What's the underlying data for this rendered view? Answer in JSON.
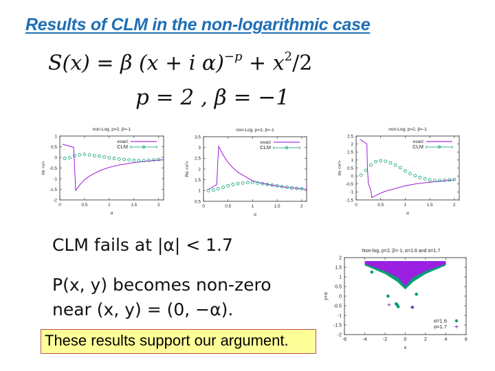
{
  "slide": {
    "title": "Results of CLM in the non-logarithmic case",
    "formula_action": {
      "lhs": "S(x) = β (x + i α)",
      "exponent": "−p",
      "rhs_a": " + x",
      "rhs_sup": "2",
      "rhs_b": "/2"
    },
    "formula_params": "p = 2 ,    β = −1",
    "claim_fail": "CLM fails at |α| < 1.7",
    "claim_p_line1": "P(x, y) becomes non-zero",
    "claim_p_line2": "near (x, y) = (0, −α).",
    "conclusion": "These results support our argument."
  },
  "colors": {
    "title": "#1f6fb5",
    "exact": "#9400d3",
    "clm": "#009e73",
    "box_fill": "#ffff99",
    "box_border": "#c0504d"
  },
  "chart_data": [
    {
      "type": "line",
      "title": "non-Log, p=2, β=-1",
      "xlabel": "α",
      "ylabel": "Im <x>",
      "xlim": [
        0,
        2.1
      ],
      "ylim": [
        -2,
        1
      ],
      "xticks": [
        0,
        0.5,
        1,
        1.5,
        2
      ],
      "yticks": [
        -2,
        -1.5,
        -1,
        -0.5,
        0,
        0.5,
        1
      ],
      "legend": [
        "exact",
        "CLM"
      ],
      "legend_position": "top-right",
      "series": [
        {
          "name": "exact",
          "style": "line",
          "x": [
            0.05,
            0.28,
            0.3,
            0.32,
            0.4,
            0.5,
            0.6,
            0.7,
            0.8,
            0.9,
            1.0,
            1.2,
            1.4,
            1.6,
            1.8,
            2.0,
            2.1
          ],
          "y": [
            0.62,
            0.47,
            -0.5,
            -1.55,
            -1.3,
            -1.05,
            -0.88,
            -0.75,
            -0.64,
            -0.55,
            -0.47,
            -0.36,
            -0.28,
            -0.22,
            -0.17,
            -0.13,
            -0.12
          ]
        },
        {
          "name": "CLM",
          "style": "points",
          "x": [
            0.1,
            0.2,
            0.3,
            0.4,
            0.5,
            0.6,
            0.7,
            0.8,
            0.9,
            1.0,
            1.1,
            1.2,
            1.3,
            1.4,
            1.5,
            1.6,
            1.7,
            1.8,
            1.9,
            2.0
          ],
          "y": [
            -0.05,
            -0.02,
            0.08,
            0.12,
            0.14,
            0.12,
            0.08,
            0.05,
            0.02,
            -0.02,
            -0.05,
            -0.08,
            -0.1,
            -0.12,
            -0.14,
            -0.15,
            -0.15,
            -0.14,
            -0.12,
            -0.1
          ]
        }
      ]
    },
    {
      "type": "line",
      "title": "non-Log, p=2, β=-1",
      "xlabel": "α",
      "ylabel": "Re <x²>",
      "xlim": [
        0,
        2.1
      ],
      "ylim": [
        0.5,
        3.5
      ],
      "xticks": [
        0,
        0.5,
        1,
        1.5,
        2
      ],
      "yticks": [
        0.5,
        1,
        1.5,
        2,
        2.5,
        3,
        3.5
      ],
      "legend": [
        "exact",
        "CLM"
      ],
      "legend_position": "top-right",
      "series": [
        {
          "name": "exact",
          "style": "line",
          "x": [
            0.1,
            0.15,
            0.27,
            0.29,
            0.31,
            0.4,
            0.5,
            0.6,
            0.7,
            0.8,
            0.9,
            1.0,
            1.2,
            1.4,
            1.6,
            1.8,
            2.0,
            2.1
          ],
          "y": [
            1.05,
            1.12,
            1.28,
            2.3,
            3.05,
            2.65,
            2.3,
            2.05,
            1.85,
            1.72,
            1.58,
            1.45,
            1.33,
            1.25,
            1.18,
            1.12,
            1.08,
            1.06
          ]
        },
        {
          "name": "CLM",
          "style": "points",
          "x": [
            0.1,
            0.2,
            0.3,
            0.4,
            0.5,
            0.6,
            0.7,
            0.8,
            0.9,
            1.0,
            1.1,
            1.2,
            1.3,
            1.4,
            1.5,
            1.6,
            1.7,
            1.8,
            1.9,
            2.0
          ],
          "y": [
            1.0,
            1.03,
            1.08,
            1.15,
            1.22,
            1.28,
            1.32,
            1.35,
            1.37,
            1.37,
            1.35,
            1.32,
            1.28,
            1.25,
            1.22,
            1.18,
            1.15,
            1.12,
            1.1,
            1.08
          ]
        }
      ]
    },
    {
      "type": "line",
      "title": "non-Log, p=2, β=-1",
      "xlabel": "α",
      "ylabel": "Im <x²>",
      "xlim": [
        0,
        2.1
      ],
      "ylim": [
        -1.5,
        2.5
      ],
      "xticks": [
        0,
        0.5,
        1,
        1.5,
        2
      ],
      "yticks": [
        -1.5,
        -1,
        -0.5,
        0,
        0.5,
        1,
        1.5,
        2,
        2.5
      ],
      "legend": [
        "exact",
        "CLM"
      ],
      "legend_position": "top-right",
      "series": [
        {
          "name": "exact",
          "style": "line",
          "x": [
            0.08,
            0.22,
            0.23,
            0.25,
            0.27,
            0.3,
            0.32,
            0.4,
            0.5,
            0.6,
            0.8,
            1.0,
            1.2,
            1.4,
            1.6,
            1.8,
            2.0
          ],
          "y": [
            2.3,
            2.0,
            0.5,
            -0.55,
            -0.6,
            -0.9,
            -1.35,
            -1.22,
            -1.08,
            -0.95,
            -0.78,
            -0.62,
            -0.5,
            -0.42,
            -0.36,
            -0.3,
            -0.25
          ]
        },
        {
          "name": "CLM",
          "style": "points",
          "x": [
            0.1,
            0.2,
            0.3,
            0.4,
            0.5,
            0.6,
            0.7,
            0.8,
            0.9,
            1.0,
            1.1,
            1.2,
            1.3,
            1.4,
            1.5,
            1.6,
            1.7,
            1.8,
            1.9,
            2.0
          ],
          "y": [
            0.05,
            0.35,
            0.68,
            0.9,
            0.95,
            0.92,
            0.82,
            0.68,
            0.52,
            0.32,
            0.15,
            0.02,
            -0.1,
            -0.18,
            -0.25,
            -0.28,
            -0.28,
            -0.27,
            -0.25,
            -0.22
          ]
        }
      ]
    },
    {
      "type": "scatter",
      "title": "Non-log, p=2, β=-1, α=1.6 and α=1.7",
      "xlabel": "x",
      "ylabel": "y+α",
      "xlim": [
        -6,
        6
      ],
      "ylim": [
        -2,
        2
      ],
      "xticks": [
        -6,
        -4,
        -2,
        0,
        2,
        4,
        6
      ],
      "yticks": [
        -2,
        -1.5,
        -1,
        -0.5,
        0,
        0.5,
        1,
        1.5,
        2
      ],
      "legend": [
        "α=1.6",
        "α=1.7"
      ],
      "legend_position": "bottom-right",
      "series": [
        {
          "name": "α=1.6",
          "marker": "filled-circle",
          "region": "V-shaped band from (-4,1.65) down to (0,0.35) and up to (4,1.65)",
          "outliers": [
            [
              -3.3,
              1.25
            ],
            [
              -1.7,
              0.0
            ],
            [
              1.1,
              0.1
            ],
            [
              -0.9,
              -0.4
            ],
            [
              -0.8,
              -0.45
            ],
            [
              -0.7,
              -0.55
            ],
            [
              0.7,
              -0.58
            ]
          ]
        },
        {
          "name": "α=1.7",
          "marker": "plus",
          "region": "V-shaped dense region from (-4,1.75) down to (0,0.5) and up to (4,1.75)",
          "outliers": [
            [
              -1.6,
              -0.45
            ],
            [
              0.7,
              -0.58
            ],
            [
              1.5,
              1.45
            ]
          ]
        }
      ]
    }
  ]
}
